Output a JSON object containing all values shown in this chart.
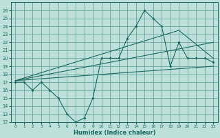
{
  "title": "",
  "xlabel": "Humidex (Indice chaleur)",
  "xlim": [
    -0.5,
    23.5
  ],
  "ylim": [
    12,
    27
  ],
  "yticks": [
    12,
    13,
    14,
    15,
    16,
    17,
    18,
    19,
    20,
    21,
    22,
    23,
    24,
    25,
    26
  ],
  "xticks": [
    0,
    1,
    2,
    3,
    4,
    5,
    6,
    7,
    8,
    9,
    10,
    11,
    12,
    13,
    14,
    15,
    16,
    17,
    18,
    19,
    20,
    21,
    22,
    23
  ],
  "bg_color": "#bde0d8",
  "grid_color": "#5a9a90",
  "line_color": "#1a6860",
  "main_x": [
    0,
    1,
    2,
    3,
    4,
    5,
    6,
    7,
    8,
    9,
    10,
    11,
    12,
    13,
    14,
    15,
    16,
    17,
    18,
    19,
    20,
    21,
    22,
    23
  ],
  "main_y": [
    17.0,
    17.0,
    16.0,
    17.0,
    16.0,
    15.0,
    13.0,
    12.0,
    12.5,
    15.0,
    20.0,
    20.0,
    20.0,
    22.5,
    24.0,
    26.0,
    25.0,
    24.0,
    19.0,
    22.0,
    20.0,
    20.0,
    20.0,
    19.5
  ],
  "line1_x": [
    0,
    23
  ],
  "line1_y": [
    17.2,
    19.0
  ],
  "line2_x": [
    0,
    23
  ],
  "line2_y": [
    17.2,
    22.0
  ],
  "line3_x": [
    0,
    19,
    23
  ],
  "line3_y": [
    17.2,
    23.5,
    20.0
  ],
  "figsize": [
    3.2,
    2.0
  ],
  "dpi": 100
}
